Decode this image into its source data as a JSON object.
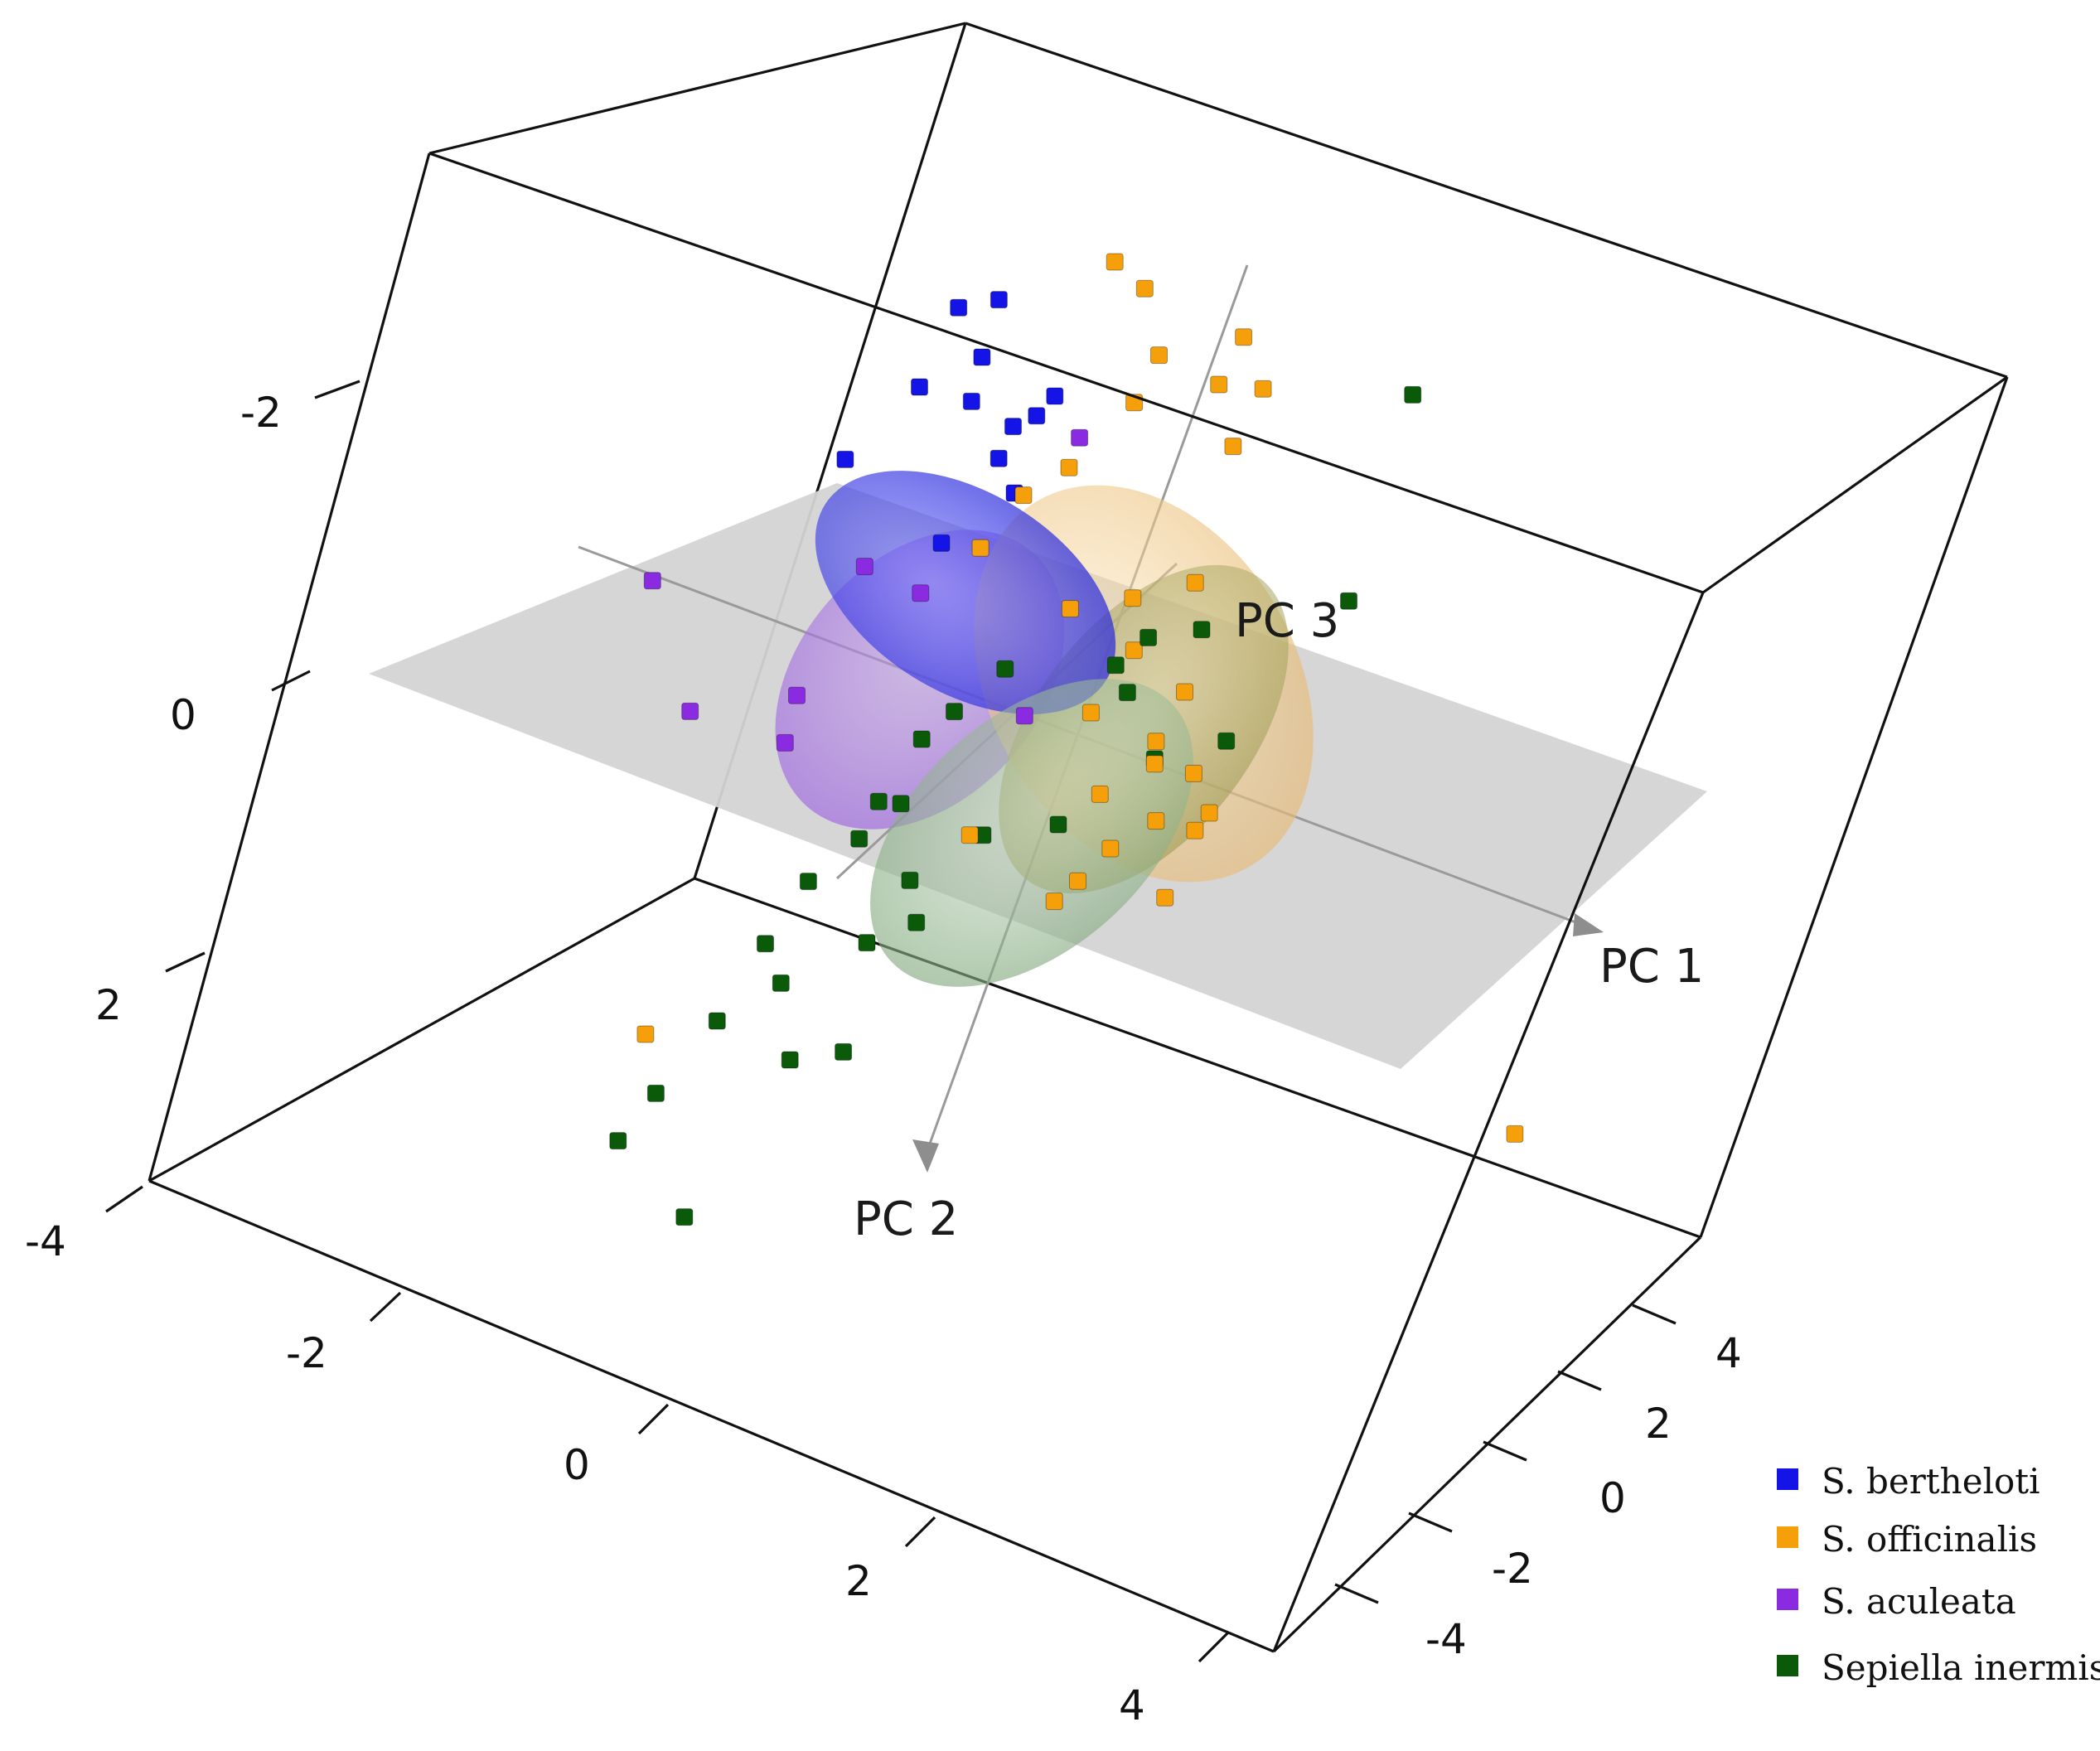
{
  "chart_data": {
    "type": "scatter",
    "title": "",
    "axes": [
      {
        "name": "PC 1",
        "ticks": [
          "-4",
          "-2",
          "0",
          "2",
          "4"
        ]
      },
      {
        "name": "PC 2",
        "ticks": [
          "-2",
          "0",
          "2"
        ]
      },
      {
        "name": "PC 3",
        "ticks": [
          "-4",
          "-2",
          "0",
          "2",
          "4"
        ]
      }
    ],
    "grid": false,
    "regression_plane": true,
    "confidence_ellipsoids": true,
    "legend": {
      "position": "bottom-right",
      "entries": [
        {
          "label": "S. bertheloti",
          "color": "#1414e6"
        },
        {
          "label": "S. officinalis",
          "color": "#f5a00a"
        },
        {
          "label": "S. aculeata",
          "color": "#8a2be2"
        },
        {
          "label": "Sepiella inermis",
          "color": "#0a5a0a"
        }
      ]
    },
    "series": [
      {
        "name": "S. bertheloti",
        "color": "#1414e6",
        "points": [
          [
            -1.6,
            -2.3,
            -0.2
          ],
          [
            -1.5,
            -2.0,
            -0.6
          ],
          [
            -1.5,
            -1.8,
            0.2
          ],
          [
            -1.7,
            -1.6,
            -0.9
          ],
          [
            -1.2,
            -1.9,
            -0.4
          ],
          [
            -1.1,
            -1.3,
            0.1
          ],
          [
            -1.0,
            -1.0,
            0.3
          ],
          [
            -1.0,
            -1.6,
            0.4
          ],
          [
            -1.2,
            -0.8,
            -0.1
          ],
          [
            -1.3,
            -1.2,
            0.6
          ],
          [
            -1.3,
            -2.5,
            -0.3
          ],
          [
            -0.9,
            -1.7,
            0.0
          ]
        ]
      },
      {
        "name": "S. officinalis",
        "color": "#f5a00a",
        "points": [
          [
            -1.0,
            -2.4,
            0.6
          ],
          [
            -0.6,
            -2.5,
            0.3
          ],
          [
            -0.3,
            -2.2,
            0.2
          ],
          [
            0.1,
            -2.3,
            0.5
          ],
          [
            0.4,
            -2.1,
            0.4
          ],
          [
            -0.4,
            -1.8,
            0.3
          ],
          [
            0.0,
            -1.9,
            0.6
          ],
          [
            -0.6,
            -1.4,
            0.1
          ],
          [
            -0.8,
            -1.2,
            0.0
          ],
          [
            0.2,
            -1.5,
            0.7
          ],
          [
            0.4,
            -0.8,
            0.4
          ],
          [
            -1.1,
            -0.6,
            0.3
          ],
          [
            -0.3,
            -0.5,
            0.2
          ],
          [
            0.1,
            -0.2,
            0.5
          ],
          [
            0.0,
            0.2,
            0.4
          ],
          [
            0.5,
            0.0,
            0.6
          ],
          [
            0.6,
            0.3,
            0.3
          ],
          [
            0.8,
            0.4,
            0.5
          ],
          [
            0.7,
            0.7,
            0.4
          ],
          [
            0.9,
            0.8,
            0.6
          ],
          [
            0.5,
            0.9,
            0.3
          ],
          [
            1.0,
            0.6,
            0.5
          ],
          [
            0.4,
            1.1,
            0.2
          ],
          [
            0.2,
            1.4,
            0.4
          ],
          [
            -0.4,
            1.0,
            0.1
          ],
          [
            0.3,
            0.6,
            0.3
          ],
          [
            0.6,
            0.1,
            0.2
          ],
          [
            0.1,
            -0.7,
            0.2
          ],
          [
            -2.0,
            2.7,
            -0.2
          ],
          [
            3.8,
            1.9,
            0.6
          ],
          [
            0.9,
            1.2,
            0.5
          ]
        ]
      },
      {
        "name": "S. aculeata",
        "color": "#8a2be2",
        "points": [
          [
            -2.9,
            -0.2,
            -0.5
          ],
          [
            -2.2,
            0.3,
            -0.8
          ],
          [
            -1.8,
            -0.3,
            0.2
          ],
          [
            -1.6,
            0.1,
            -0.6
          ],
          [
            -1.4,
            -0.2,
            0.3
          ],
          [
            -1.7,
            0.6,
            -0.3
          ],
          [
            -0.6,
            -1.6,
            0.1
          ],
          [
            -0.4,
            0.3,
            0.3
          ]
        ]
      },
      {
        "name": "Sepiella inermis",
        "color": "#0a5a0a",
        "points": [
          [
            1.3,
            -2.2,
            0.7
          ],
          [
            1.4,
            -0.9,
            0.6
          ],
          [
            0.6,
            -0.6,
            0.3
          ],
          [
            0.3,
            -0.5,
            0.2
          ],
          [
            0.1,
            -0.2,
            0.3
          ],
          [
            0.2,
            0.0,
            0.4
          ],
          [
            0.5,
            0.4,
            0.5
          ],
          [
            -0.6,
            0.0,
            0.2
          ],
          [
            -0.8,
            0.3,
            0.1
          ],
          [
            -1.0,
            0.6,
            0.2
          ],
          [
            -1.1,
            1.2,
            0.0
          ],
          [
            -0.7,
            1.4,
            0.1
          ],
          [
            -0.8,
            1.8,
            0.0
          ],
          [
            -1.3,
            1.5,
            -0.1
          ],
          [
            -1.2,
            2.1,
            -0.2
          ],
          [
            -1.5,
            2.4,
            -0.3
          ],
          [
            -1.0,
            2.6,
            -0.1
          ],
          [
            -0.7,
            2.5,
            0.0
          ],
          [
            -1.4,
            1.9,
            -0.2
          ],
          [
            -1.7,
            2.9,
            -0.4
          ],
          [
            -1.8,
            3.2,
            -0.5
          ],
          [
            -1.1,
            1.0,
            0.1
          ],
          [
            -0.9,
            0.9,
            0.0
          ],
          [
            -0.6,
            1.7,
            0.2
          ],
          [
            0.9,
            0.2,
            0.6
          ],
          [
            -0.4,
            1.1,
            0.3
          ],
          [
            -1.3,
            3.7,
            -0.2
          ],
          [
            0.0,
            1.0,
            0.5
          ]
        ]
      }
    ]
  }
}
